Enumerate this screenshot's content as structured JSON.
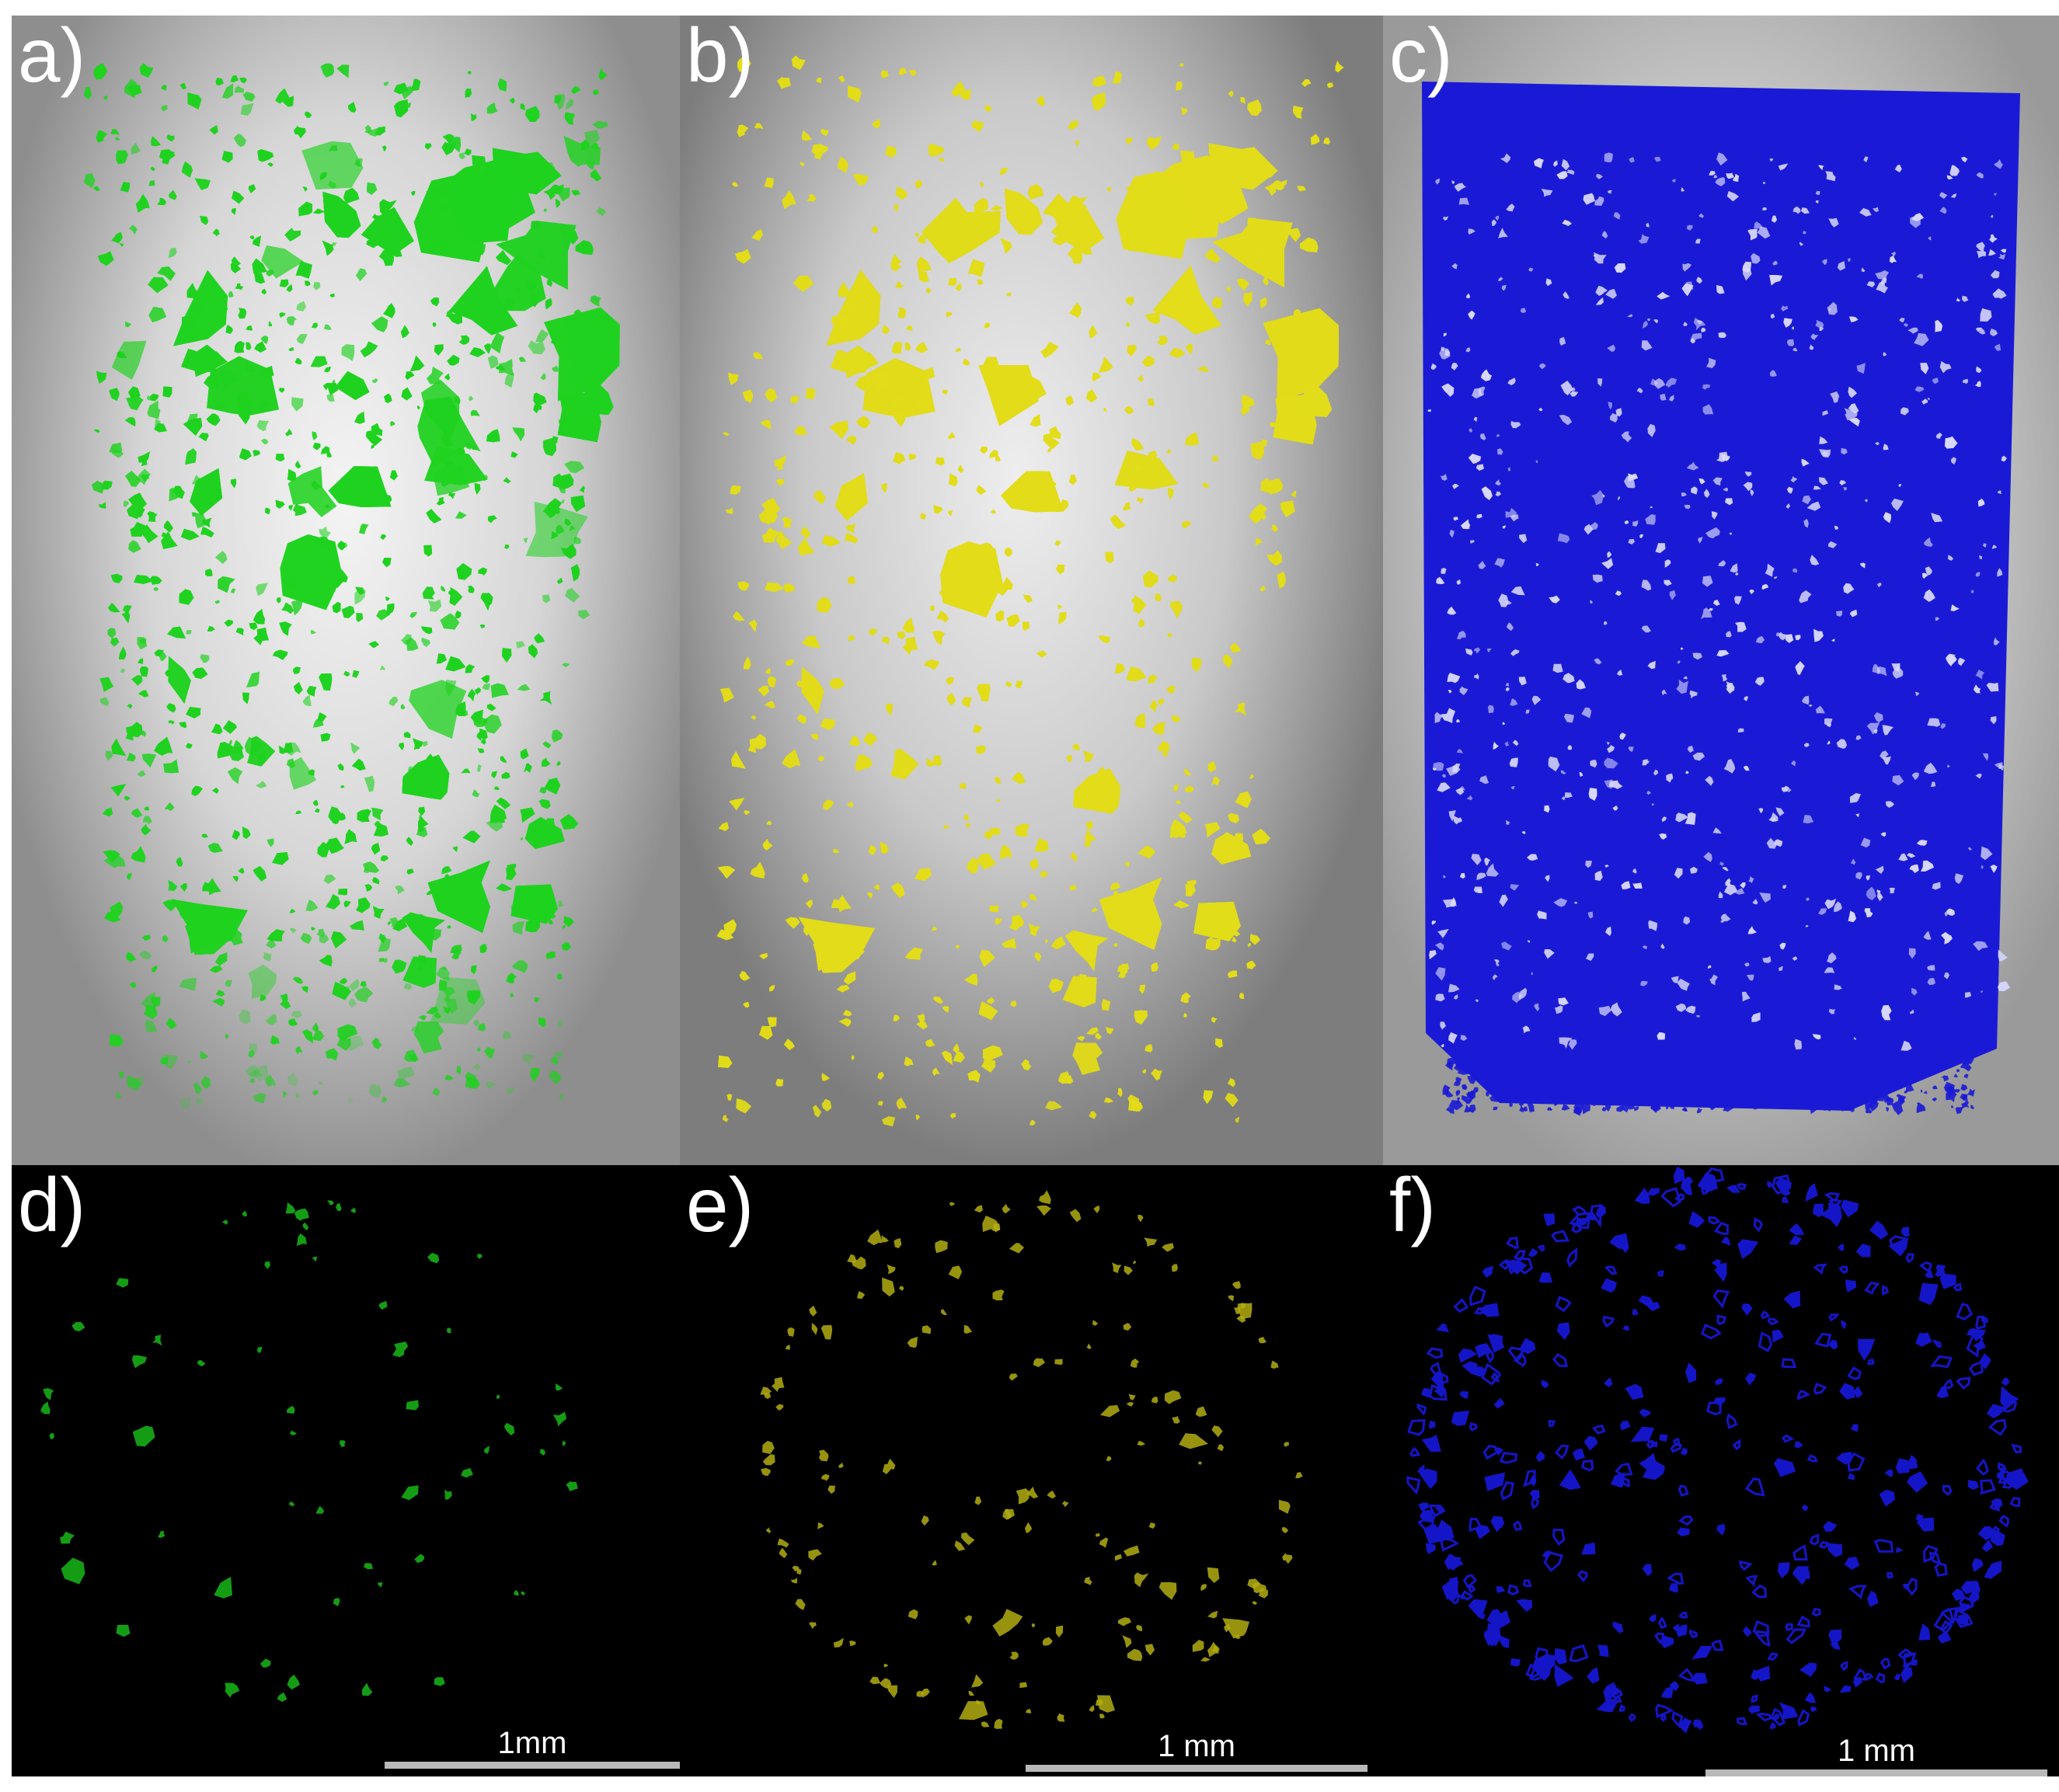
{
  "panels": {
    "a": {
      "label": "a)",
      "color": "#1fd21f"
    },
    "b": {
      "label": "b)",
      "color": "#e2dc1a"
    },
    "c": {
      "label": "c)",
      "color": "#1a1ad6"
    },
    "d": {
      "label": "d)",
      "color": "#18b818",
      "scale": "1mm"
    },
    "e": {
      "label": "e)",
      "color": "#b3ad10",
      "scale": "1 mm"
    },
    "f": {
      "label": "f)",
      "color": "#1515c8",
      "scale": "1 mm"
    }
  }
}
